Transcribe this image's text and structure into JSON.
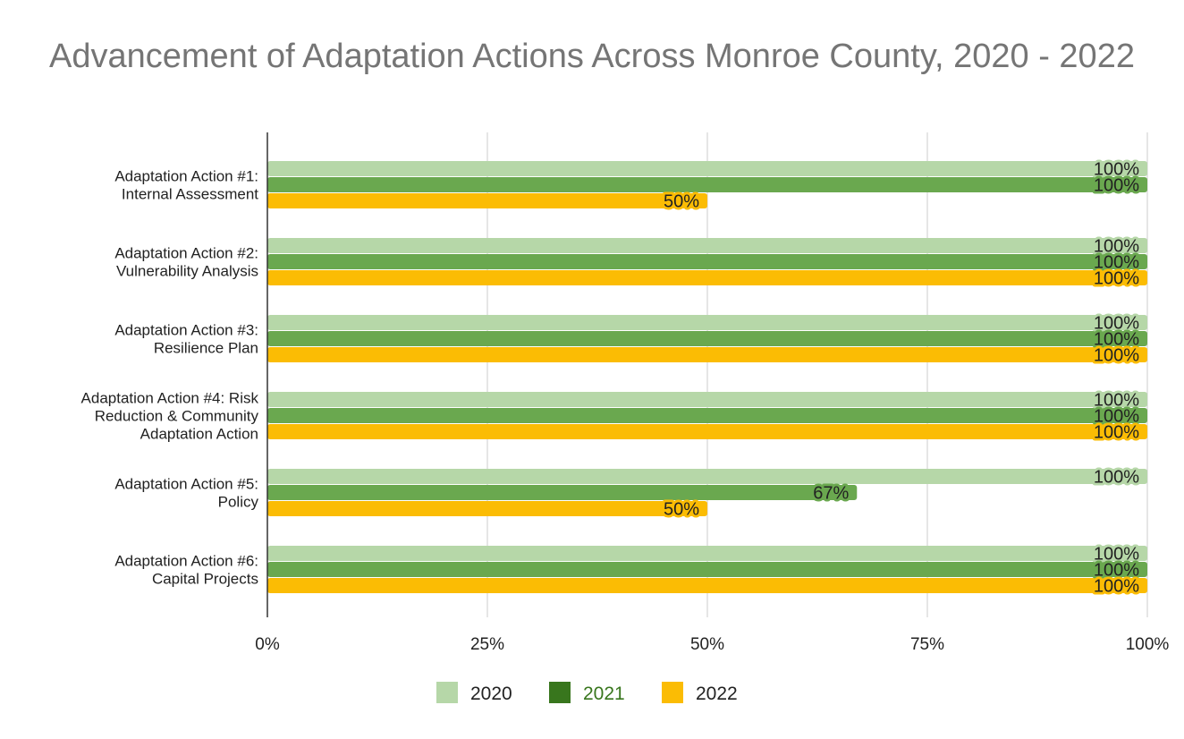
{
  "chart_data": {
    "type": "bar",
    "orientation": "horizontal",
    "title": "Advancement of Adaptation Actions Across Monroe County, 2020 - 2022",
    "categories": [
      "Adaptation Action #1: Internal Assessment",
      "Adaptation Action #2: Vulnerability Analysis",
      "Adaptation Action #3: Resilience Plan",
      "Adaptation Action #4: Risk Reduction & Community Adaptation Action",
      "Adaptation Action #5: Policy",
      "Adaptation Action #6: Capital Projects"
    ],
    "category_lines": [
      [
        "Adaptation Action #1:",
        "Internal Assessment"
      ],
      [
        "Adaptation Action #2:",
        "Vulnerability Analysis"
      ],
      [
        "Adaptation Action #3:",
        "Resilience Plan"
      ],
      [
        "Adaptation Action #4: Risk",
        "Reduction & Community",
        "Adaptation Action"
      ],
      [
        "Adaptation Action #5:",
        "Policy"
      ],
      [
        "Adaptation Action #6:",
        "Capital Projects"
      ]
    ],
    "series": [
      {
        "name": "2020",
        "color": "#b6d7a8",
        "legend_text_color": "#222222",
        "values": [
          100,
          100,
          100,
          100,
          100,
          100
        ],
        "labels": [
          "100%",
          "100%",
          "100%",
          "100%",
          "100%",
          "100%"
        ]
      },
      {
        "name": "2021",
        "color": "#6aa84f",
        "legend_swatch_color": "#38761d",
        "legend_text_color": "#38761d",
        "values": [
          100,
          100,
          100,
          100,
          67,
          100
        ],
        "labels": [
          "100%",
          "100%",
          "100%",
          "100%",
          "67%",
          "100%"
        ]
      },
      {
        "name": "2022",
        "color": "#fbbc04",
        "legend_text_color": "#222222",
        "values": [
          50,
          100,
          100,
          100,
          50,
          100
        ],
        "labels": [
          "50%",
          "100%",
          "100%",
          "100%",
          "50%",
          "100%"
        ]
      }
    ],
    "xlim": [
      0,
      100
    ],
    "x_ticks": [
      0,
      25,
      50,
      75,
      100
    ],
    "x_tick_labels": [
      "0%",
      "25%",
      "50%",
      "75%",
      "100%"
    ],
    "grid": true,
    "legend_position": "bottom"
  }
}
